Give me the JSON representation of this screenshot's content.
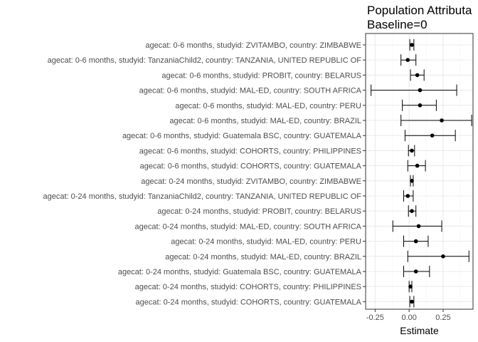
{
  "chart_data": {
    "type": "scatter",
    "title_lines": [
      "Population Attributa",
      "Baseline=0"
    ],
    "xlabel": "Estimate",
    "ylabel": "",
    "xlim": [
      -0.32,
      0.47
    ],
    "x_ticks": [
      -0.25,
      0,
      0.25
    ],
    "x_tick_labels": [
      "-0.25",
      "0.00",
      "0.25"
    ],
    "grid": true,
    "points": [
      {
        "label": "agecat: 0-6 months, studyid: ZVITAMBO, country: ZIMBABWE",
        "estimate": 0.02,
        "lower": 0.005,
        "upper": 0.035
      },
      {
        "label": "agecat: 0-6 months, studyid: TanzaniaChild2, country: TANZANIA, UNITED REPUBLIC OF",
        "estimate": -0.01,
        "lower": -0.06,
        "upper": 0.05
      },
      {
        "label": "agecat: 0-6 months, studyid: PROBIT, country: BELARUS",
        "estimate": 0.06,
        "lower": 0.01,
        "upper": 0.11
      },
      {
        "label": "agecat: 0-6 months, studyid: MAL-ED, country: SOUTH AFRICA",
        "estimate": 0.08,
        "lower": -0.28,
        "upper": 0.35
      },
      {
        "label": "agecat: 0-6 months, studyid: MAL-ED, country: PERU",
        "estimate": 0.08,
        "lower": -0.05,
        "upper": 0.2
      },
      {
        "label": "agecat: 0-6 months, studyid: MAL-ED, country: BRAZIL",
        "estimate": 0.24,
        "lower": -0.06,
        "upper": 0.46
      },
      {
        "label": "agecat: 0-6 months, studyid: Guatemala BSC, country: GUATEMALA",
        "estimate": 0.17,
        "lower": -0.03,
        "upper": 0.34
      },
      {
        "label": "agecat: 0-6 months, studyid: COHORTS, country: PHILIPPINES",
        "estimate": 0.02,
        "lower": -0.005,
        "upper": 0.04
      },
      {
        "label": "agecat: 0-6 months, studyid: COHORTS, country: GUATEMALA",
        "estimate": 0.06,
        "lower": -0.01,
        "upper": 0.12
      },
      {
        "label": "agecat: 0-24 months, studyid: ZVITAMBO, country: ZIMBABWE",
        "estimate": 0.02,
        "lower": 0.01,
        "upper": 0.03
      },
      {
        "label": "agecat: 0-24 months, studyid: TanzaniaChild2, country: TANZANIA, UNITED REPUBLIC OF",
        "estimate": -0.01,
        "lower": -0.04,
        "upper": 0.03
      },
      {
        "label": "agecat: 0-24 months, studyid: PROBIT, country: BELARUS",
        "estimate": 0.02,
        "lower": -0.005,
        "upper": 0.05
      },
      {
        "label": "agecat: 0-24 months, studyid: MAL-ED, country: SOUTH AFRICA",
        "estimate": 0.07,
        "lower": -0.12,
        "upper": 0.24
      },
      {
        "label": "agecat: 0-24 months, studyid: MAL-ED, country: PERU",
        "estimate": 0.05,
        "lower": -0.04,
        "upper": 0.14
      },
      {
        "label": "agecat: 0-24 months, studyid: MAL-ED, country: BRAZIL",
        "estimate": 0.25,
        "lower": -0.01,
        "upper": 0.44
      },
      {
        "label": "agecat: 0-24 months, studyid: Guatemala BSC, country: GUATEMALA",
        "estimate": 0.05,
        "lower": -0.04,
        "upper": 0.15
      },
      {
        "label": "agecat: 0-24 months, studyid: COHORTS, country: PHILIPPINES",
        "estimate": 0.01,
        "lower": 0.0,
        "upper": 0.02
      },
      {
        "label": "agecat: 0-24 months, studyid: COHORTS, country: GUATEMALA",
        "estimate": 0.02,
        "lower": 0.005,
        "upper": 0.035
      }
    ],
    "colors": {
      "panel_border": "#333333",
      "grid_major": "#ebebeb",
      "grid_minor": "#f5f5f5",
      "point": "#000000",
      "tick_text": "#4d4d4d"
    }
  }
}
